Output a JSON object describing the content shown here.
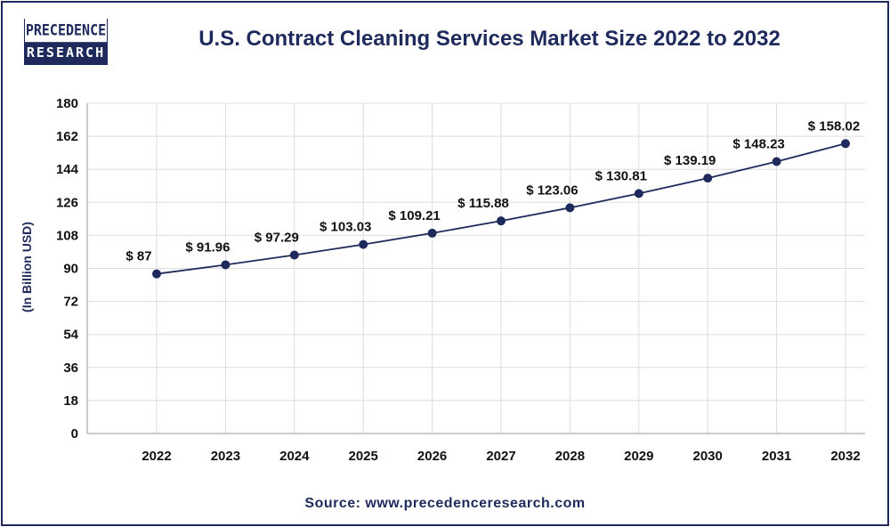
{
  "logo": {
    "line1": "PRECEDENCE",
    "line2": "RESEARCH"
  },
  "source": "Source: www.precedenceresearch.com",
  "colors": {
    "line": "#1f2a5c",
    "marker": "#1f2a5c",
    "grid": "#dddddd",
    "title": "#1f2a5c"
  },
  "chart_data": {
    "type": "line",
    "title": "U.S. Contract Cleaning Services Market Size 2022 to 2032",
    "xlabel": "",
    "ylabel": "(In Billion USD)",
    "categories": [
      "2022",
      "2023",
      "2024",
      "2025",
      "2026",
      "2027",
      "2028",
      "2029",
      "2030",
      "2031",
      "2032"
    ],
    "values": [
      87,
      91.96,
      97.29,
      103.03,
      109.21,
      115.88,
      123.06,
      130.81,
      139.19,
      148.23,
      158.02
    ],
    "data_labels": [
      "$ 87",
      "$ 91.96",
      "$ 97.29",
      "$ 103.03",
      "$ 109.21",
      "$ 115.88",
      "$ 123.06",
      "$ 130.81",
      "$ 139.19",
      "$ 148.23",
      "$ 158.02"
    ],
    "yticks": [
      0,
      18,
      36,
      54,
      72,
      90,
      108,
      126,
      144,
      162,
      180
    ],
    "ylim": [
      0,
      180
    ],
    "grid": true,
    "legend": "none"
  }
}
